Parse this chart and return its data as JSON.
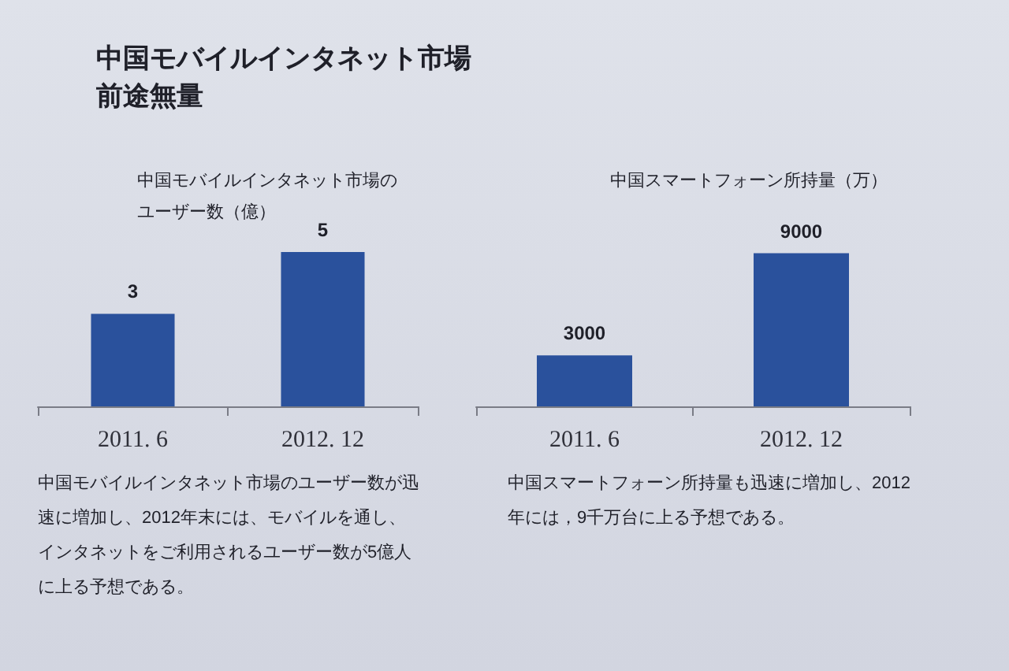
{
  "chart_data": [
    {
      "type": "bar",
      "title": "中国モバイルインタネット市場前途無量",
      "subtitle": "中国モバイルインタネット市場のユーザー数（億）",
      "categories": [
        "2011. 6",
        "2012. 12"
      ],
      "values": [
        3,
        5
      ],
      "color": "#2a519c",
      "data_labels": true,
      "tick_labels": "x",
      "annotations": [
        "中国モバイルインタネット市場のユーザー数が迅速に増加し、2012年末には、モバイルを通し、インタネットをご利用されるユーザー数が5億人に上る予想である。"
      ]
    },
    {
      "type": "bar",
      "title": "中国スマートフォーン所持量（万）",
      "categories": [
        "2011. 6",
        "2012. 12"
      ],
      "values": [
        3000,
        9000
      ],
      "color": "#2a519c",
      "data_labels": true,
      "tick_labels": "x",
      "annotations": [
        "中国スマートフォーン所持量も迅速に増加し、2012年には，9千万台に上る予想である。"
      ]
    }
  ]
}
